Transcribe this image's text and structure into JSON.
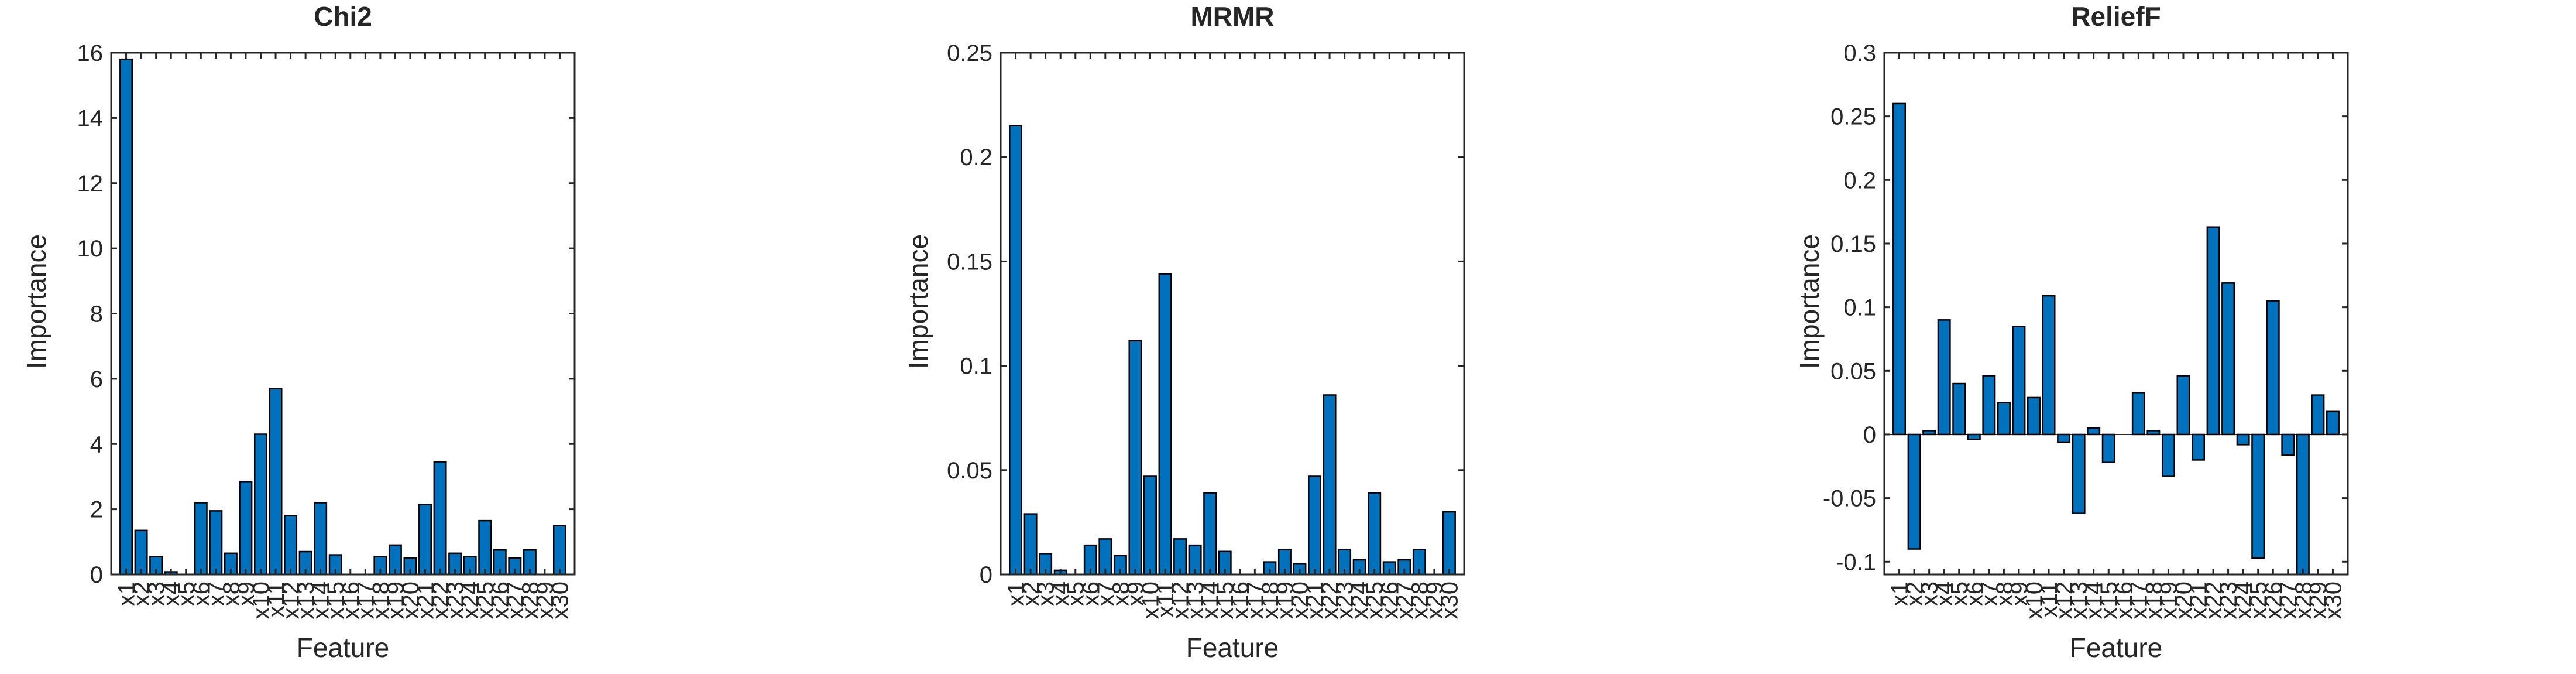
{
  "colors": {
    "bar": "#0072BD",
    "bar_edge": "#000000",
    "axis": "#262626"
  },
  "chart_data": [
    {
      "type": "bar",
      "title": "Chi2",
      "xlabel": "Feature",
      "ylabel": "Importance",
      "ylim": [
        0,
        16
      ],
      "yticks": [
        0,
        2,
        4,
        6,
        8,
        10,
        12,
        14,
        16
      ],
      "ytick_labels": [
        "0",
        "2",
        "4",
        "6",
        "8",
        "10",
        "12",
        "14",
        "16"
      ],
      "grid": false,
      "categories": [
        "x1",
        "x2",
        "x3",
        "x4",
        "x5",
        "x6",
        "x7",
        "x8",
        "x9",
        "x10",
        "x11",
        "x12",
        "x13",
        "x14",
        "x15",
        "x16",
        "x17",
        "x18",
        "x19",
        "x20",
        "x21",
        "x22",
        "x23",
        "x24",
        "x25",
        "x26",
        "x27",
        "x28",
        "x29",
        "x30"
      ],
      "values": [
        15.8,
        1.35,
        0.55,
        0.08,
        0,
        2.2,
        1.95,
        0.65,
        2.85,
        4.3,
        5.7,
        1.8,
        0.7,
        2.2,
        0.6,
        0,
        0,
        0.55,
        0.9,
        0.5,
        2.15,
        3.45,
        0.65,
        0.55,
        1.65,
        0.75,
        0.5,
        0.75,
        0,
        1.5
      ]
    },
    {
      "type": "bar",
      "title": "MRMR",
      "xlabel": "Feature",
      "ylabel": "Importance",
      "ylim": [
        0,
        0.25
      ],
      "yticks": [
        0,
        0.05,
        0.1,
        0.15,
        0.2,
        0.25
      ],
      "ytick_labels": [
        "0",
        "0.05",
        "0.1",
        "0.15",
        "0.2",
        "0.25"
      ],
      "grid": false,
      "categories": [
        "x1",
        "x2",
        "x3",
        "x4",
        "x5",
        "x6",
        "x7",
        "x8",
        "x9",
        "x10",
        "x11",
        "x12",
        "x13",
        "x14",
        "x15",
        "x16",
        "x17",
        "x18",
        "x19",
        "x20",
        "x21",
        "x22",
        "x23",
        "x24",
        "x25",
        "x26",
        "x27",
        "x28",
        "x29",
        "x30"
      ],
      "values": [
        0.215,
        0.029,
        0.01,
        0.002,
        0,
        0.014,
        0.017,
        0.009,
        0.112,
        0.047,
        0.144,
        0.017,
        0.014,
        0.039,
        0.011,
        0,
        0,
        0.006,
        0.012,
        0.005,
        0.047,
        0.086,
        0.012,
        0.007,
        0.039,
        0.006,
        0.007,
        0.012,
        0,
        0.03
      ]
    },
    {
      "type": "bar",
      "title": "ReliefF",
      "xlabel": "Feature",
      "ylabel": "Importance",
      "ylim": [
        -0.11,
        0.3
      ],
      "yticks": [
        -0.1,
        -0.05,
        0,
        0.05,
        0.1,
        0.15,
        0.2,
        0.25,
        0.3
      ],
      "ytick_labels": [
        "-0.1",
        "-0.05",
        "0",
        "0.05",
        "0.1",
        "0.15",
        "0.2",
        "0.25",
        "0.3"
      ],
      "grid": false,
      "categories": [
        "x1",
        "x2",
        "x3",
        "x4",
        "x5",
        "x6",
        "x7",
        "x8",
        "x9",
        "x10",
        "x11",
        "x12",
        "x13",
        "x14",
        "x15",
        "x16",
        "x17",
        "x18",
        "x19",
        "x20",
        "x21",
        "x22",
        "x23",
        "x24",
        "x25",
        "x26",
        "x27",
        "x28",
        "x29",
        "x30"
      ],
      "values": [
        0.26,
        -0.09,
        0.003,
        0.09,
        0.04,
        -0.004,
        0.046,
        0.025,
        0.085,
        0.029,
        0.109,
        -0.006,
        -0.062,
        0.005,
        -0.022,
        0,
        0.033,
        0.003,
        -0.033,
        0.046,
        -0.02,
        0.163,
        0.119,
        -0.008,
        -0.097,
        0.105,
        -0.016,
        -0.11,
        0.031,
        0.018
      ]
    }
  ]
}
